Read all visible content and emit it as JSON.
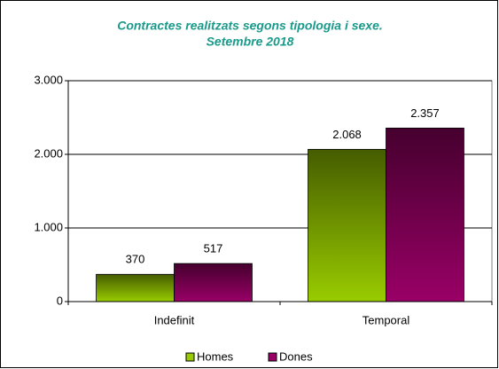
{
  "chart_data": {
    "type": "bar",
    "title": [
      "Contractes realitzats segons tipologia i sexe.",
      "Setembre 2018"
    ],
    "categories": [
      "Indefinit",
      "Temporal"
    ],
    "series": [
      {
        "name": "Homes",
        "color": "#99cc00",
        "values": [
          370,
          2068
        ],
        "value_labels": [
          "370",
          "2.068"
        ]
      },
      {
        "name": "Dones",
        "color": "#990066",
        "values": [
          517,
          2357
        ],
        "value_labels": [
          "517",
          "2.357"
        ]
      }
    ],
    "ylim": [
      0,
      3000
    ],
    "yticks": [
      0,
      {
        "value": 1000,
        "label": "1.000"
      },
      {
        "value": 2000,
        "label": "2.000"
      },
      {
        "value": 3000,
        "label": "3.000"
      }
    ],
    "grid": true,
    "legend": "bottom"
  }
}
